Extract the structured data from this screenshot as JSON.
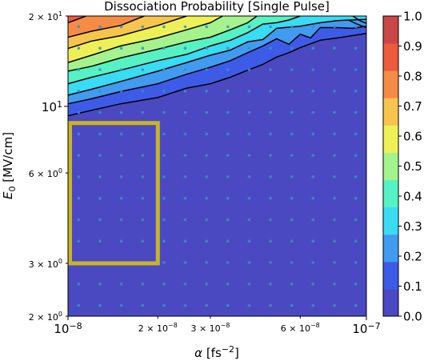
{
  "chart_data": {
    "type": "contour",
    "title": "Dissociation Probability [Single Pulse]",
    "xlabel": {
      "symbol": "α",
      "unit_pre": " [fs",
      "unit_exp": "−2",
      "unit_post": "]"
    },
    "ylabel": {
      "symbol": "E",
      "sub": "0",
      "unit": " [MV/cm]"
    },
    "xscale": "log",
    "yscale": "log",
    "xlim": [
      1e-08,
      1e-07
    ],
    "ylim": [
      2,
      20
    ],
    "x_ticks": [
      {
        "value": 1e-08,
        "mant": "10",
        "exp": "−8",
        "major": true
      },
      {
        "value": 2e-08,
        "mant": "2 × 10",
        "exp": "−8",
        "major": false
      },
      {
        "value": 3e-08,
        "mant": "3 × 10",
        "exp": "−8",
        "major": false
      },
      {
        "value": 6e-08,
        "mant": "6 × 10",
        "exp": "−8",
        "major": false
      },
      {
        "value": 1e-07,
        "mant": "10",
        "exp": "−7",
        "major": true
      }
    ],
    "y_ticks": [
      {
        "value": 2,
        "mant": "2 × 10",
        "exp": "0",
        "major": false
      },
      {
        "value": 3,
        "mant": "3 × 10",
        "exp": "0",
        "major": false
      },
      {
        "value": 6,
        "mant": "6 × 10",
        "exp": "0",
        "major": false
      },
      {
        "value": 10,
        "mant": "10",
        "exp": "1",
        "major": true
      },
      {
        "value": 20,
        "mant": "2 × 10",
        "exp": "1",
        "major": false
      }
    ],
    "colorbar": {
      "range": [
        0.0,
        1.0
      ],
      "levels": [
        0.0,
        0.1,
        0.2,
        0.3,
        0.4,
        0.5,
        0.6,
        0.7,
        0.8,
        0.9,
        1.0
      ],
      "tick_labels": [
        "0.0",
        "0.1",
        "0.2",
        "0.3",
        "0.4",
        "0.5",
        "0.6",
        "0.7",
        "0.8",
        "0.9",
        "1.0"
      ],
      "colors": [
        "#4a49c2",
        "#3e5be8",
        "#419bf0",
        "#39dcf2",
        "#56f2c3",
        "#a4f38d",
        "#eef057",
        "#f6c54e",
        "#f58c46",
        "#ee5a3d",
        "#c94747"
      ]
    },
    "sample_grid": {
      "nx": 14,
      "ny": 14,
      "marker_color": "#3a8fc0"
    },
    "contour_lines": [
      {
        "level": 0.1,
        "points": [
          [
            1e-08,
            9.3
          ],
          [
            1.2e-08,
            9.7
          ],
          [
            1.5e-08,
            10.2
          ],
          [
            2e-08,
            10.7
          ],
          [
            2.5e-08,
            11.5
          ],
          [
            3e-08,
            11.9
          ],
          [
            3.5e-08,
            12.5
          ],
          [
            4e-08,
            13.2
          ],
          [
            4.5e-08,
            13.8
          ],
          [
            5e-08,
            14.6
          ],
          [
            5.5e-08,
            15.1
          ],
          [
            6e-08,
            15.7
          ],
          [
            7e-08,
            16.6
          ],
          [
            8e-08,
            16.9
          ],
          [
            1e-07,
            17.5
          ]
        ]
      },
      {
        "level": 0.2,
        "points": [
          [
            1e-08,
            10.2
          ],
          [
            1.2e-08,
            10.6
          ],
          [
            1.5e-08,
            11.2
          ],
          [
            2e-08,
            11.9
          ],
          [
            2.5e-08,
            12.8
          ],
          [
            3e-08,
            13.5
          ],
          [
            3.5e-08,
            14.2
          ],
          [
            4e-08,
            15.1
          ],
          [
            4.5e-08,
            15.9
          ],
          [
            5e-08,
            16.8
          ],
          [
            5.5e-08,
            16.1
          ],
          [
            6e-08,
            17.4
          ],
          [
            6.5e-08,
            16.9
          ],
          [
            7e-08,
            18.3
          ],
          [
            8e-08,
            18.3
          ],
          [
            9e-08,
            18.2
          ],
          [
            1e-07,
            18.5
          ]
        ]
      },
      {
        "level": 0.3,
        "points": [
          [
            1e-08,
            10.9
          ],
          [
            1.2e-08,
            11.4
          ],
          [
            1.5e-08,
            12.1
          ],
          [
            2e-08,
            13.1
          ],
          [
            2.5e-08,
            14.0
          ],
          [
            3e-08,
            14.8
          ],
          [
            3.5e-08,
            15.4
          ],
          [
            4e-08,
            16.4
          ],
          [
            4.5e-08,
            16.7
          ],
          [
            5e-08,
            18.2
          ],
          [
            6e-08,
            18.5
          ],
          [
            7e-08,
            19.0
          ],
          [
            8e-08,
            19.3
          ],
          [
            1e-07,
            19.5
          ]
        ]
      },
      {
        "level": 0.4,
        "points": [
          [
            1e-08,
            11.9
          ],
          [
            1.2e-08,
            12.5
          ],
          [
            1.5e-08,
            13.2
          ],
          [
            2e-08,
            14.2
          ],
          [
            2.5e-08,
            14.9
          ],
          [
            3e-08,
            15.9
          ],
          [
            3.5e-08,
            16.6
          ],
          [
            4e-08,
            17.6
          ],
          [
            4.5e-08,
            18.8
          ],
          [
            5e-08,
            19.0
          ],
          [
            5.5e-08,
            19.4
          ],
          [
            6e-08,
            20.0
          ]
        ]
      },
      {
        "level": 0.5,
        "points": [
          [
            1e-08,
            13.1
          ],
          [
            1.2e-08,
            13.6
          ],
          [
            1.5e-08,
            14.5
          ],
          [
            2e-08,
            15.5
          ],
          [
            2.5e-08,
            16.4
          ],
          [
            3e-08,
            17.0
          ],
          [
            3.5e-08,
            18.0
          ],
          [
            4e-08,
            19.0
          ],
          [
            4.3e-08,
            20.0
          ]
        ]
      },
      {
        "level": 0.6,
        "points": [
          [
            1e-08,
            14.0
          ],
          [
            1.2e-08,
            14.8
          ],
          [
            1.5e-08,
            15.9
          ],
          [
            2e-08,
            16.9
          ],
          [
            2.5e-08,
            18.0
          ],
          [
            3e-08,
            19.0
          ],
          [
            3.3e-08,
            20.0
          ]
        ]
      },
      {
        "level": 0.7,
        "points": [
          [
            1e-08,
            15.6
          ],
          [
            1.2e-08,
            16.5
          ],
          [
            1.5e-08,
            17.2
          ],
          [
            2e-08,
            18.6
          ],
          [
            2.5e-08,
            20.0
          ]
        ]
      },
      {
        "level": 0.8,
        "points": [
          [
            1e-08,
            17.0
          ],
          [
            1.2e-08,
            17.8
          ],
          [
            1.5e-08,
            18.6
          ],
          [
            1.8e-08,
            20.0
          ]
        ]
      },
      {
        "level": 0.9,
        "points": [
          [
            1e-08,
            19.0
          ],
          [
            1.15e-08,
            20.0
          ]
        ]
      }
    ],
    "extra_contours": [
      {
        "level": 0.1,
        "points": [
          [
            8.7e-08,
            19.4
          ],
          [
            9.3e-08,
            18.8
          ],
          [
            1e-07,
            18.3
          ]
        ]
      },
      {
        "level": 0.2,
        "points": [
          [
            9e-08,
            20.0
          ],
          [
            9.6e-08,
            19.2
          ],
          [
            1e-07,
            18.9
          ]
        ]
      }
    ],
    "highlight_rectangle": {
      "x_range": [
        1e-08,
        2e-08
      ],
      "y_range": [
        3,
        8.8
      ],
      "color": "#c9b520"
    }
  }
}
